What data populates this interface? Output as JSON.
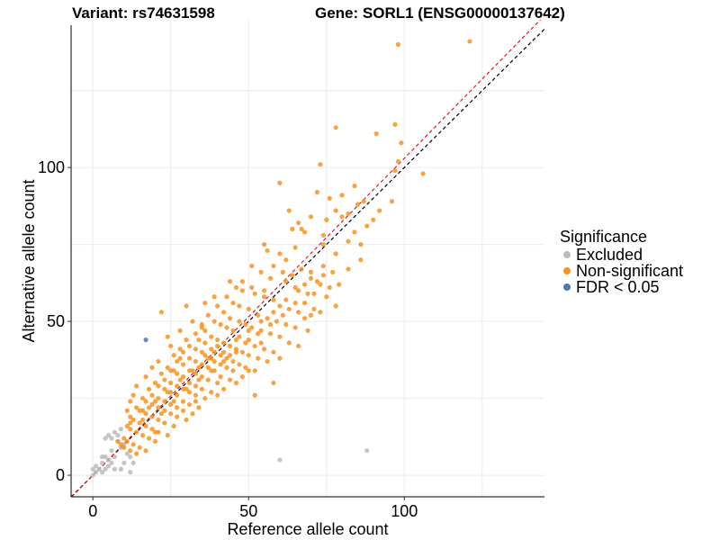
{
  "titles": {
    "variant": "Variant: rs74631598",
    "gene": "Gene: SORL1 (ENSG00000137642)"
  },
  "chart_data": {
    "type": "scatter",
    "xlabel": "Reference allele count",
    "ylabel": "Alternative allele count",
    "xlim": [
      -7,
      145
    ],
    "ylim": [
      -7,
      148
    ],
    "xticks": [
      0,
      50,
      100
    ],
    "yticks": [
      0,
      50,
      100
    ],
    "grid": true,
    "legend_title": "Significance",
    "legend": [
      {
        "key": "excluded",
        "label": "Excluded",
        "color": "#BBBBBB"
      },
      {
        "key": "nonsig",
        "label": "Non-significant",
        "color": "#F7931E"
      },
      {
        "key": "fdr",
        "label": "FDR < 0.05",
        "color": "#4A78B0"
      }
    ],
    "reference_lines": [
      {
        "name": "identity",
        "slope": 1.0,
        "color": "#000000",
        "style": "dashed"
      },
      {
        "name": "fit",
        "slope": 1.03,
        "color": "#E31A1C",
        "style": "dashed"
      }
    ],
    "series": [
      {
        "name": "Excluded",
        "color": "#BBBBBB",
        "points": [
          [
            0,
            0
          ],
          [
            1,
            1
          ],
          [
            0,
            2
          ],
          [
            1,
            3
          ],
          [
            2,
            2
          ],
          [
            3,
            1
          ],
          [
            3,
            4
          ],
          [
            4,
            2
          ],
          [
            4,
            6
          ],
          [
            5,
            5
          ],
          [
            5,
            3
          ],
          [
            6,
            4
          ],
          [
            6,
            8
          ],
          [
            7,
            6
          ],
          [
            4,
            12
          ],
          [
            5,
            13
          ],
          [
            6,
            12
          ],
          [
            7,
            14
          ],
          [
            8,
            13
          ],
          [
            9,
            15
          ],
          [
            8,
            11
          ],
          [
            9,
            9
          ],
          [
            10,
            10
          ],
          [
            11,
            7
          ],
          [
            12,
            6
          ],
          [
            10,
            4
          ],
          [
            13,
            4
          ],
          [
            7,
            2
          ],
          [
            9,
            2
          ],
          [
            12,
            1
          ],
          [
            60,
            5
          ],
          [
            88,
            8
          ],
          [
            3,
            6
          ]
        ]
      },
      {
        "name": "Non-significant",
        "color": "#F7931E",
        "points": [
          [
            98,
            140
          ],
          [
            121,
            141
          ],
          [
            78,
            113
          ],
          [
            91,
            111
          ],
          [
            97,
            114
          ],
          [
            99,
            108
          ],
          [
            98,
            102
          ],
          [
            73,
            101
          ],
          [
            97,
            99
          ],
          [
            106,
            98
          ],
          [
            96,
            89
          ],
          [
            87,
            89
          ],
          [
            60,
            95
          ],
          [
            72,
            92
          ],
          [
            76,
            90
          ],
          [
            80,
            91
          ],
          [
            85,
            88
          ],
          [
            82,
            85
          ],
          [
            75,
            83
          ],
          [
            70,
            84
          ],
          [
            66,
            82
          ],
          [
            64,
            80
          ],
          [
            68,
            79
          ],
          [
            74,
            78
          ],
          [
            84,
            79
          ],
          [
            88,
            81
          ],
          [
            92,
            86
          ],
          [
            78,
            86
          ],
          [
            55,
            75
          ],
          [
            56,
            73
          ],
          [
            60,
            72
          ],
          [
            62,
            70
          ],
          [
            67,
            67
          ],
          [
            64,
            65
          ],
          [
            70,
            66
          ],
          [
            74,
            65
          ],
          [
            77,
            66
          ],
          [
            82,
            67
          ],
          [
            86,
            70
          ],
          [
            74,
            75
          ],
          [
            51,
            68
          ],
          [
            54,
            66
          ],
          [
            57,
            64
          ],
          [
            62,
            63
          ],
          [
            65,
            61
          ],
          [
            68,
            62
          ],
          [
            72,
            63
          ],
          [
            76,
            61
          ],
          [
            79,
            62
          ],
          [
            71,
            59
          ],
          [
            75,
            58
          ],
          [
            78,
            55
          ],
          [
            68,
            56
          ],
          [
            46,
            61
          ],
          [
            48,
            60
          ],
          [
            52,
            59
          ],
          [
            55,
            58
          ],
          [
            58,
            57
          ],
          [
            60,
            55
          ],
          [
            63,
            54
          ],
          [
            66,
            53
          ],
          [
            70,
            52
          ],
          [
            73,
            53
          ],
          [
            43,
            58
          ],
          [
            45,
            56
          ],
          [
            47,
            55
          ],
          [
            50,
            54
          ],
          [
            53,
            52
          ],
          [
            56,
            51
          ],
          [
            59,
            50
          ],
          [
            62,
            49
          ],
          [
            65,
            48
          ],
          [
            68,
            51
          ],
          [
            40,
            55
          ],
          [
            42,
            53
          ],
          [
            44,
            51
          ],
          [
            47,
            50
          ],
          [
            49,
            49
          ],
          [
            51,
            48
          ],
          [
            54,
            47
          ],
          [
            57,
            46
          ],
          [
            60,
            45
          ],
          [
            63,
            43
          ],
          [
            37,
            52
          ],
          [
            39,
            50
          ],
          [
            41,
            49
          ],
          [
            43,
            48
          ],
          [
            45,
            47
          ],
          [
            47,
            45
          ],
          [
            50,
            44
          ],
          [
            52,
            42
          ],
          [
            55,
            41
          ],
          [
            58,
            40
          ],
          [
            35,
            49
          ],
          [
            36,
            47
          ],
          [
            38,
            45
          ],
          [
            40,
            44
          ],
          [
            42,
            43
          ],
          [
            44,
            42
          ],
          [
            46,
            41
          ],
          [
            48,
            40
          ],
          [
            50,
            39
          ],
          [
            53,
            38
          ],
          [
            56,
            37
          ],
          [
            33,
            46
          ],
          [
            34,
            44
          ],
          [
            36,
            43
          ],
          [
            38,
            41
          ],
          [
            39,
            40
          ],
          [
            41,
            39
          ],
          [
            43,
            38
          ],
          [
            45,
            37
          ],
          [
            47,
            36
          ],
          [
            49,
            35
          ],
          [
            52,
            34
          ],
          [
            30,
            44
          ],
          [
            31,
            42
          ],
          [
            33,
            41
          ],
          [
            35,
            40
          ],
          [
            37,
            38
          ],
          [
            39,
            37
          ],
          [
            41,
            36
          ],
          [
            43,
            35
          ],
          [
            45,
            34
          ],
          [
            48,
            32
          ],
          [
            28,
            41
          ],
          [
            29,
            40
          ],
          [
            31,
            38
          ],
          [
            33,
            37
          ],
          [
            35,
            36
          ],
          [
            37,
            35
          ],
          [
            39,
            34
          ],
          [
            41,
            32
          ],
          [
            44,
            31
          ],
          [
            26,
            39
          ],
          [
            27,
            37
          ],
          [
            29,
            36
          ],
          [
            31,
            34
          ],
          [
            33,
            33
          ],
          [
            35,
            32
          ],
          [
            37,
            31
          ],
          [
            40,
            30
          ],
          [
            42,
            28
          ],
          [
            24,
            35
          ],
          [
            25,
            34
          ],
          [
            27,
            33
          ],
          [
            29,
            32
          ],
          [
            31,
            30
          ],
          [
            33,
            29
          ],
          [
            35,
            28
          ],
          [
            38,
            27
          ],
          [
            22,
            33
          ],
          [
            23,
            31
          ],
          [
            25,
            30
          ],
          [
            27,
            29
          ],
          [
            29,
            28
          ],
          [
            31,
            27
          ],
          [
            33,
            26
          ],
          [
            36,
            25
          ],
          [
            20,
            30
          ],
          [
            21,
            29
          ],
          [
            23,
            28
          ],
          [
            25,
            27
          ],
          [
            27,
            26
          ],
          [
            29,
            24
          ],
          [
            31,
            23
          ],
          [
            34,
            22
          ],
          [
            18,
            28
          ],
          [
            19,
            26
          ],
          [
            21,
            25
          ],
          [
            23,
            24
          ],
          [
            25,
            23
          ],
          [
            27,
            22
          ],
          [
            29,
            21
          ],
          [
            32,
            20
          ],
          [
            16,
            25
          ],
          [
            17,
            24
          ],
          [
            19,
            23
          ],
          [
            21,
            22
          ],
          [
            23,
            21
          ],
          [
            25,
            20
          ],
          [
            27,
            19
          ],
          [
            30,
            18
          ],
          [
            14,
            22
          ],
          [
            15,
            21
          ],
          [
            17,
            20
          ],
          [
            19,
            19
          ],
          [
            21,
            18
          ],
          [
            23,
            17
          ],
          [
            26,
            16
          ],
          [
            12,
            19
          ],
          [
            13,
            18
          ],
          [
            15,
            17
          ],
          [
            17,
            16
          ],
          [
            19,
            15
          ],
          [
            21,
            14
          ],
          [
            24,
            13
          ],
          [
            11,
            16
          ],
          [
            12,
            15
          ],
          [
            14,
            14
          ],
          [
            16,
            13
          ],
          [
            18,
            12
          ],
          [
            20,
            11
          ],
          [
            10,
            12
          ],
          [
            11,
            11
          ],
          [
            13,
            10
          ],
          [
            15,
            9
          ],
          [
            17,
            8
          ],
          [
            9,
            10
          ],
          [
            10,
            9
          ],
          [
            12,
            8
          ],
          [
            14,
            7
          ],
          [
            8,
            11
          ],
          [
            22,
            53
          ],
          [
            35,
            48
          ],
          [
            28,
            38
          ],
          [
            26,
            34
          ],
          [
            52,
            26
          ],
          [
            58,
            30
          ],
          [
            60,
            38
          ],
          [
            66,
            42
          ],
          [
            71,
            54
          ],
          [
            69,
            47
          ],
          [
            32,
            50
          ],
          [
            30,
            55
          ],
          [
            25,
            42
          ],
          [
            21,
            37
          ],
          [
            17,
            32
          ],
          [
            14,
            29
          ],
          [
            12,
            24
          ],
          [
            19,
            35
          ],
          [
            44,
            63
          ],
          [
            48,
            63
          ],
          [
            39,
            58
          ],
          [
            28,
            47
          ],
          [
            24,
            45
          ],
          [
            36,
            56
          ],
          [
            51,
            61
          ],
          [
            58,
            68
          ],
          [
            50,
            34
          ],
          [
            54,
            43
          ],
          [
            46,
            30
          ],
          [
            40,
            26
          ],
          [
            33,
            24
          ],
          [
            18,
            22
          ],
          [
            16,
            18
          ],
          [
            20,
            14
          ],
          [
            34,
            35
          ],
          [
            38,
            38
          ],
          [
            42,
            40
          ],
          [
            46,
            44
          ],
          [
            50,
            47
          ],
          [
            54,
            50
          ],
          [
            58,
            53
          ],
          [
            62,
            57
          ],
          [
            66,
            60
          ],
          [
            70,
            64
          ],
          [
            74,
            68
          ],
          [
            78,
            72
          ],
          [
            82,
            76
          ],
          [
            55,
            60
          ],
          [
            61,
            66
          ],
          [
            65,
            74
          ],
          [
            67,
            80
          ],
          [
            63,
            86
          ],
          [
            80,
            84
          ],
          [
            84,
            94
          ],
          [
            86,
            75
          ],
          [
            90,
            83
          ],
          [
            44,
            39
          ],
          [
            40,
            42
          ],
          [
            36,
            39
          ],
          [
            32,
            34
          ],
          [
            28,
            31
          ],
          [
            24,
            27
          ],
          [
            20,
            24
          ],
          [
            16,
            21
          ],
          [
            12,
            17
          ],
          [
            11,
            21
          ],
          [
            13,
            26
          ],
          [
            22,
            20
          ],
          [
            26,
            24
          ],
          [
            30,
            28
          ],
          [
            34,
            31
          ],
          [
            38,
            34
          ],
          [
            42,
            37
          ],
          [
            46,
            40
          ],
          [
            49,
            43
          ],
          [
            53,
            46
          ],
          [
            57,
            49
          ],
          [
            61,
            52
          ],
          [
            65,
            56
          ],
          [
            69,
            59
          ],
          [
            73,
            62
          ]
        ]
      },
      {
        "name": "FDR < 0.05",
        "color": "#4A78B0",
        "points": [
          [
            17,
            44
          ]
        ]
      }
    ]
  }
}
